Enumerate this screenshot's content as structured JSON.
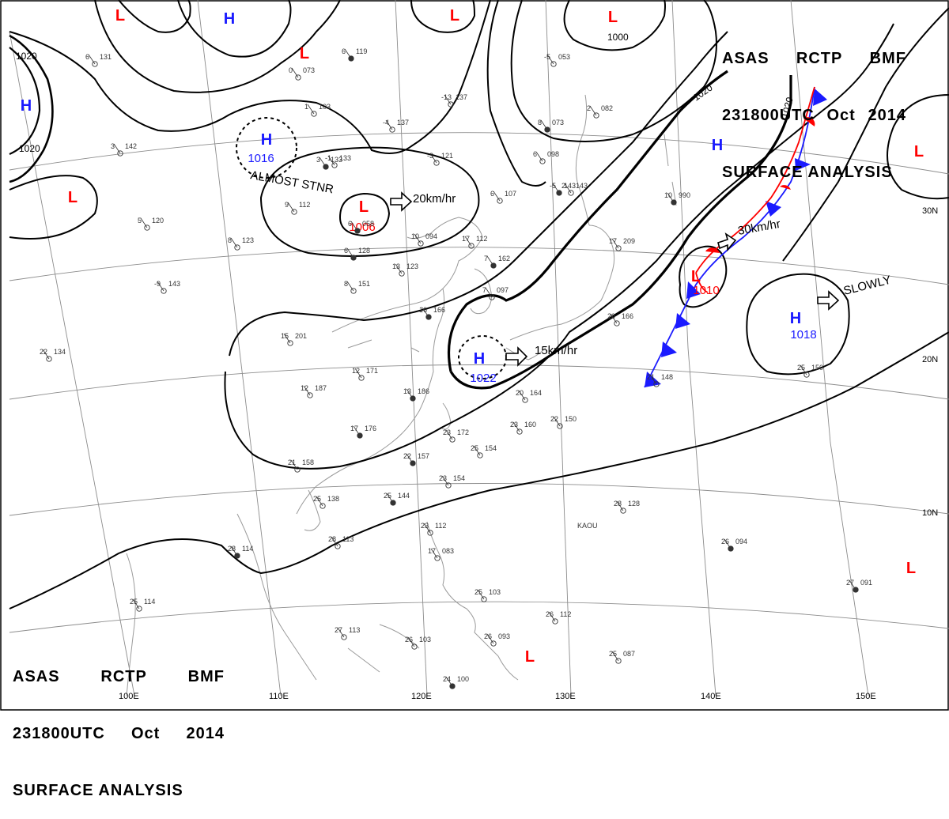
{
  "header_top_right": {
    "line1": [
      "ASAS",
      "RCTP",
      "BMF"
    ],
    "line2": [
      "231800UTC",
      "Oct",
      "2014"
    ],
    "line3": "SURFACE ANALYSIS"
  },
  "header_bottom_left": {
    "line1": [
      "ASAS",
      "RCTP",
      "BMF"
    ],
    "line2": [
      "231800UTC",
      "Oct",
      "2014"
    ],
    "line3": "SURFACE ANALYSIS"
  },
  "colors": {
    "high": "#1a1aff",
    "low": "#ff0000",
    "isobar": "#000000",
    "grid": "#8c8c8c",
    "coast": "#9a9a9a"
  },
  "pressure_systems": [
    {
      "id": "h-top-left",
      "type": "H",
      "symbol": "H",
      "value": ""
    },
    {
      "id": "h-far-left",
      "type": "H",
      "symbol": "H",
      "value": ""
    },
    {
      "id": "h-mongolia",
      "type": "H",
      "symbol": "H",
      "value": "1016",
      "note": "ALMOST STNR"
    },
    {
      "id": "h-korea",
      "type": "H",
      "symbol": "H",
      "value": "1022",
      "motion": "15km/hr"
    },
    {
      "id": "h-pacific-north",
      "type": "H",
      "symbol": "H",
      "value": ""
    },
    {
      "id": "h-pacific",
      "type": "H",
      "symbol": "H",
      "value": "1018",
      "motion": "SLOWLY"
    },
    {
      "id": "l-top-1",
      "type": "L",
      "symbol": "L",
      "value": ""
    },
    {
      "id": "l-top-2",
      "type": "L",
      "symbol": "L",
      "value": ""
    },
    {
      "id": "l-top-3",
      "type": "L",
      "symbol": "L",
      "value": ""
    },
    {
      "id": "l-west",
      "type": "L",
      "symbol": "L",
      "value": ""
    },
    {
      "id": "l-china",
      "type": "L",
      "symbol": "L",
      "value": "1006",
      "motion": "20km/hr"
    },
    {
      "id": "l-front",
      "type": "L",
      "symbol": "L",
      "value": "1010",
      "motion": "30km/hr"
    },
    {
      "id": "l-far-east",
      "type": "L",
      "symbol": "L",
      "value": ""
    },
    {
      "id": "l-east-lower",
      "type": "L",
      "symbol": "L",
      "value": ""
    },
    {
      "id": "l-philippines",
      "type": "L",
      "symbol": "L",
      "value": ""
    }
  ],
  "isobar_labels": [
    "1020",
    "1020",
    "1000",
    "1020",
    "1020"
  ],
  "grid_labels": {
    "longitude": [
      "100E",
      "110E",
      "120E",
      "130E",
      "140E",
      "150E"
    ],
    "latitude": [
      "30N",
      "20N",
      "10N"
    ]
  },
  "station_plots": [
    {
      "t": "6",
      "p": "131"
    },
    {
      "t": "6",
      "p": "119"
    },
    {
      "t": "0",
      "p": "073"
    },
    {
      "t": "1",
      "p": "103"
    },
    {
      "t": "-1",
      "p": "133"
    },
    {
      "t": "-5",
      "p": "143"
    },
    {
      "t": "-4",
      "p": "137"
    },
    {
      "t": "-13",
      "p": "137"
    },
    {
      "t": "-5",
      "p": "053"
    },
    {
      "t": "8",
      "p": "073"
    },
    {
      "t": "2",
      "p": "082"
    },
    {
      "t": "6",
      "p": "098"
    },
    {
      "t": "2",
      "p": "143"
    },
    {
      "t": "3",
      "p": "133"
    },
    {
      "t": "-3",
      "p": "121"
    },
    {
      "t": "6",
      "p": "107"
    },
    {
      "t": "9",
      "p": "112"
    },
    {
      "t": "6",
      "p": "058"
    },
    {
      "t": "3",
      "p": "142"
    },
    {
      "t": "5",
      "p": "120"
    },
    {
      "t": "8",
      "p": "123"
    },
    {
      "t": "6",
      "p": "128"
    },
    {
      "t": "10",
      "p": "094"
    },
    {
      "t": "17",
      "p": "112"
    },
    {
      "t": "13",
      "p": "123"
    },
    {
      "t": "7",
      "p": "162"
    },
    {
      "t": "7",
      "p": "097"
    },
    {
      "t": "8",
      "p": "151"
    },
    {
      "t": "-9",
      "p": "143"
    },
    {
      "t": "10",
      "p": "990"
    },
    {
      "t": "17",
      "p": "209"
    },
    {
      "t": "20",
      "p": "166"
    },
    {
      "t": "15",
      "p": "201"
    },
    {
      "t": "16",
      "p": "166"
    },
    {
      "t": "22",
      "p": "134"
    },
    {
      "t": "12",
      "p": "171"
    },
    {
      "t": "12",
      "p": "187"
    },
    {
      "t": "13",
      "p": "186"
    },
    {
      "t": "20",
      "p": "164"
    },
    {
      "t": "23",
      "p": "160"
    },
    {
      "t": "21",
      "p": "148"
    },
    {
      "t": "17",
      "p": "176"
    },
    {
      "t": "23",
      "p": "172"
    },
    {
      "t": "25",
      "p": "154"
    },
    {
      "t": "22",
      "p": "150"
    },
    {
      "t": "22",
      "p": "157"
    },
    {
      "t": "21",
      "p": "158"
    },
    {
      "t": "23",
      "p": "154"
    },
    {
      "t": "25",
      "p": "138"
    },
    {
      "t": "25",
      "p": "144"
    },
    {
      "t": "28",
      "p": "113"
    },
    {
      "t": "28",
      "p": "128"
    },
    {
      "t": "25",
      "p": "150"
    },
    {
      "t": "28",
      "p": "114"
    },
    {
      "t": "25",
      "p": "114"
    },
    {
      "t": "23",
      "p": "112"
    },
    {
      "t": "17",
      "p": "083"
    },
    {
      "t": "26",
      "p": "094"
    },
    {
      "t": "25",
      "p": "103"
    },
    {
      "t": "27",
      "p": "113"
    },
    {
      "t": "26",
      "p": "103"
    },
    {
      "t": "24",
      "p": "100"
    },
    {
      "t": "26",
      "p": "112"
    },
    {
      "t": "26",
      "p": "093"
    },
    {
      "t": "25",
      "p": "087"
    },
    {
      "t": "27",
      "p": "091"
    }
  ],
  "station_ids": [
    "KAOU"
  ]
}
